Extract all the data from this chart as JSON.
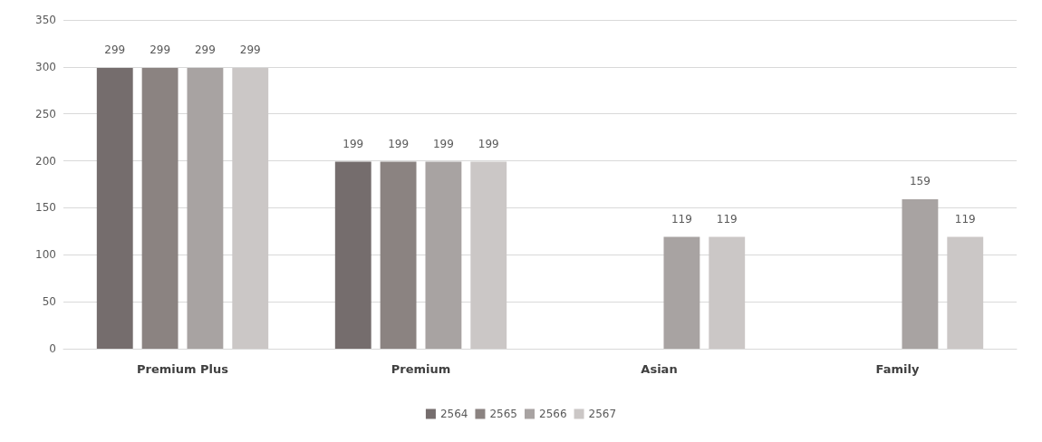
{
  "chart_data": {
    "type": "bar",
    "categories": [
      "Premium Plus",
      "Premium",
      "Asian",
      "Family"
    ],
    "series": [
      {
        "name": "2564",
        "color": "#756d6d",
        "values": [
          299,
          199,
          null,
          null
        ]
      },
      {
        "name": "2565",
        "color": "#8b8381",
        "values": [
          299,
          199,
          null,
          null
        ]
      },
      {
        "name": "2566",
        "color": "#a8a3a2",
        "values": [
          299,
          199,
          119,
          159
        ]
      },
      {
        "name": "2567",
        "color": "#cbc7c6",
        "values": [
          299,
          199,
          119,
          119
        ]
      }
    ],
    "ylim": [
      0,
      350
    ],
    "yticks": [
      0,
      50,
      100,
      150,
      200,
      250,
      300,
      350
    ],
    "grid": "y",
    "legend": "bottom",
    "data_labels": true
  }
}
